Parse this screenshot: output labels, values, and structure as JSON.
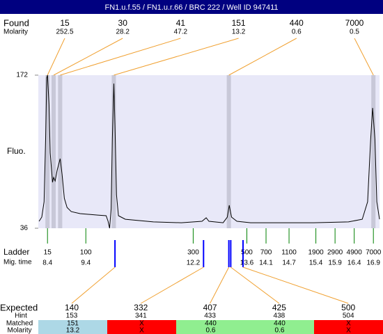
{
  "title": "FN1.u.f.55 / FN1.u.r.66 / BRC 222 / Well ID 947411",
  "chart_data": {
    "type": "line",
    "y_label": "Fluo.",
    "ylim": [
      36,
      172
    ],
    "yticks": [
      36,
      172
    ],
    "xlim": [
      8.16,
      17.06
    ],
    "trace": {
      "color": "#000000",
      "x": [
        8.18,
        8.25,
        8.31,
        8.35,
        8.38,
        8.4,
        8.44,
        8.47,
        8.53,
        8.56,
        8.6,
        8.65,
        8.73,
        8.78,
        8.84,
        8.91,
        9.02,
        9.25,
        9.71,
        9.93,
        9.98,
        10.02,
        10.06,
        10.09,
        10.13,
        10.16,
        10.2,
        10.25,
        10.43,
        11.16,
        11.89,
        12.43,
        12.54,
        12.61,
        12.98,
        13.09,
        13.14,
        13.2,
        13.34,
        13.7,
        14.43,
        15.34,
        16.25,
        16.61,
        16.75,
        16.83,
        16.88,
        16.94,
        16.99,
        17.06
      ],
      "values": [
        42.2,
        45.9,
        59.5,
        115.1,
        169.5,
        172,
        146,
        102.8,
        76.8,
        81.1,
        78,
        87.3,
        97.8,
        84.2,
        62.6,
        54.5,
        50.8,
        49,
        47.7,
        47.1,
        42.2,
        36,
        53.3,
        115.1,
        164.5,
        127.5,
        65.7,
        47.1,
        44,
        41.6,
        40.9,
        42.2,
        45.3,
        42.2,
        40.9,
        45.9,
        56.4,
        45.9,
        42.2,
        40.9,
        40.9,
        40.9,
        41.6,
        44,
        59.5,
        115.1,
        142.9,
        115.1,
        59.5,
        44
      ]
    },
    "found": {
      "label": "Found",
      "molarity_label": "Molarity",
      "sizes": [
        15,
        30,
        41,
        151,
        440,
        7000
      ],
      "molarity": [
        252.5,
        28.2,
        47.2,
        13.2,
        0.6,
        0.5
      ],
      "mig_time": [
        8.4,
        8.56,
        8.73,
        10.13,
        13.13,
        16.9
      ]
    },
    "ladder": {
      "label": "Ladder",
      "time_label": "Mig. time",
      "color": "#008000",
      "sizes": [
        15,
        100,
        300,
        500,
        700,
        1100,
        1900,
        2900,
        4900,
        7000
      ],
      "mig_time": [
        8.4,
        9.4,
        12.2,
        13.6,
        14.1,
        14.7,
        15.4,
        15.9,
        16.4,
        16.9
      ]
    },
    "expected": {
      "label": "Expected",
      "color": "#0000ff",
      "sizes": [
        140,
        332,
        407,
        425,
        500
      ],
      "mig_time": [
        10.16,
        12.47,
        13.13,
        13.18,
        13.5
      ],
      "hint_label": "Hint",
      "hint": [
        153,
        341,
        433,
        438,
        504
      ],
      "matched_label": "Matched",
      "matched": [
        151,
        "X",
        440,
        440,
        "X"
      ],
      "molarity_label": "Molarity",
      "molarity": [
        13.2,
        "X",
        0.6,
        0.6,
        "X"
      ],
      "cell_colors": [
        "#add8e6",
        "#ff0000",
        "#90ee90",
        "#90ee90",
        "#ff0000"
      ]
    }
  }
}
